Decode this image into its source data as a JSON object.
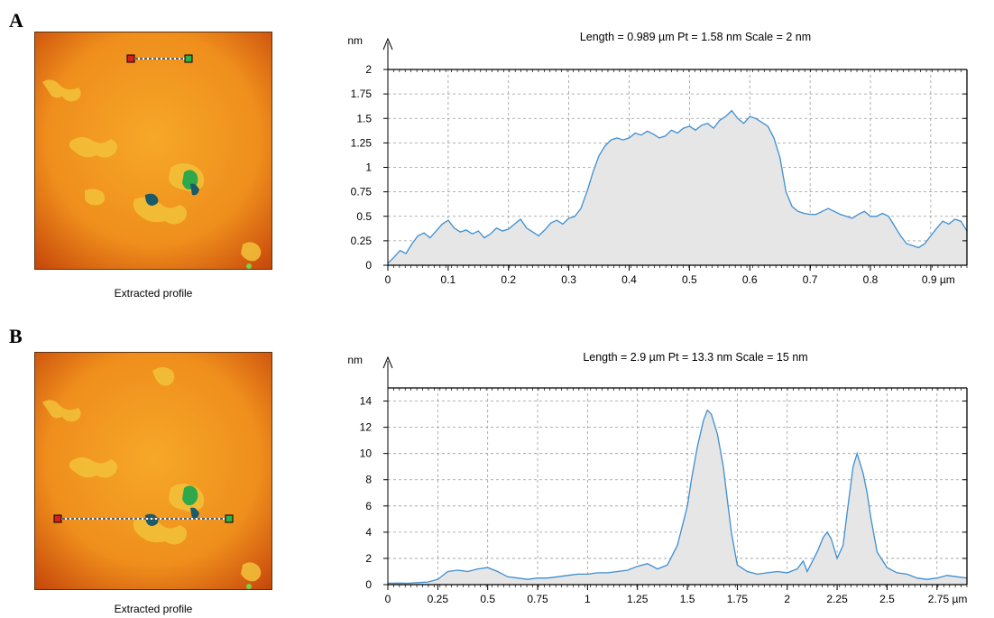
{
  "panels": [
    {
      "letter": "A",
      "caption": "Extracted profile",
      "header": "Length = 0.989 µm  Pt = 1.58 nm  Scale = 2 nm",
      "y_unit": "nm",
      "x_unit": "µm"
    },
    {
      "letter": "B",
      "caption": "Extracted profile",
      "header": "Length = 2.9 µm  Pt = 13.3 nm  Scale = 15 nm",
      "y_unit": "nm",
      "x_unit": "µm"
    }
  ],
  "colors": {
    "line": "#3d8fd1",
    "fill": "#e6e6e6",
    "grid": "#9a9a9a",
    "afm_base": "#f39a1f",
    "afm_edge": "#c4440a",
    "marker_start": "#d62020",
    "marker_end": "#2fb04a"
  },
  "chart_data": [
    {
      "type": "area",
      "title": "Length = 0.989 µm  Pt = 1.58 nm  Scale = 2 nm",
      "ylabel": "nm",
      "xlabel": "µm",
      "xlim": [
        0,
        0.96
      ],
      "ylim": [
        0,
        2
      ],
      "xticks": [
        0,
        0.1,
        0.2,
        0.3,
        0.4,
        0.5,
        0.6,
        0.7,
        0.8,
        0.9
      ],
      "xtick_labels": [
        "0",
        "0.1",
        "0.2",
        "0.3",
        "0.4",
        "0.5",
        "0.6",
        "0.7",
        "0.8",
        "0.9 µm"
      ],
      "yticks": [
        0,
        0.25,
        0.5,
        0.75,
        1,
        1.25,
        1.5,
        1.75,
        2
      ],
      "ytick_labels": [
        "0",
        "0.25",
        "0.5",
        "0.75",
        "1",
        "1.25",
        "1.5",
        "1.75",
        "2"
      ],
      "grid": true,
      "x": [
        0,
        0.01,
        0.02,
        0.03,
        0.04,
        0.05,
        0.06,
        0.07,
        0.08,
        0.09,
        0.1,
        0.11,
        0.12,
        0.13,
        0.14,
        0.15,
        0.16,
        0.17,
        0.18,
        0.19,
        0.2,
        0.21,
        0.22,
        0.23,
        0.24,
        0.25,
        0.26,
        0.27,
        0.28,
        0.29,
        0.3,
        0.31,
        0.32,
        0.33,
        0.34,
        0.35,
        0.36,
        0.37,
        0.38,
        0.39,
        0.4,
        0.41,
        0.42,
        0.43,
        0.44,
        0.45,
        0.46,
        0.47,
        0.48,
        0.49,
        0.5,
        0.51,
        0.52,
        0.53,
        0.54,
        0.55,
        0.56,
        0.57,
        0.58,
        0.59,
        0.6,
        0.61,
        0.62,
        0.63,
        0.64,
        0.65,
        0.66,
        0.67,
        0.68,
        0.69,
        0.7,
        0.71,
        0.72,
        0.73,
        0.74,
        0.75,
        0.76,
        0.77,
        0.78,
        0.79,
        0.8,
        0.81,
        0.82,
        0.83,
        0.84,
        0.85,
        0.86,
        0.87,
        0.88,
        0.89,
        0.9,
        0.91,
        0.92,
        0.93,
        0.94,
        0.95,
        0.96
      ],
      "y": [
        0.02,
        0.08,
        0.15,
        0.12,
        0.22,
        0.3,
        0.33,
        0.28,
        0.35,
        0.42,
        0.46,
        0.38,
        0.34,
        0.36,
        0.32,
        0.35,
        0.28,
        0.32,
        0.38,
        0.35,
        0.37,
        0.42,
        0.47,
        0.38,
        0.34,
        0.3,
        0.36,
        0.43,
        0.46,
        0.42,
        0.48,
        0.5,
        0.58,
        0.75,
        0.95,
        1.12,
        1.22,
        1.28,
        1.3,
        1.28,
        1.3,
        1.35,
        1.33,
        1.37,
        1.34,
        1.3,
        1.32,
        1.38,
        1.35,
        1.4,
        1.42,
        1.38,
        1.43,
        1.45,
        1.4,
        1.48,
        1.52,
        1.58,
        1.5,
        1.45,
        1.52,
        1.5,
        1.46,
        1.42,
        1.3,
        1.1,
        0.75,
        0.6,
        0.55,
        0.53,
        0.52,
        0.52,
        0.55,
        0.58,
        0.55,
        0.52,
        0.5,
        0.48,
        0.52,
        0.55,
        0.5,
        0.5,
        0.53,
        0.5,
        0.4,
        0.3,
        0.22,
        0.2,
        0.18,
        0.22,
        0.3,
        0.38,
        0.45,
        0.42,
        0.47,
        0.45,
        0.35
      ]
    },
    {
      "type": "area",
      "title": "Length = 2.9 µm  Pt = 13.3 nm  Scale = 15 nm",
      "ylabel": "nm",
      "xlabel": "µm",
      "xlim": [
        0,
        2.9
      ],
      "ylim": [
        0,
        15
      ],
      "xticks": [
        0,
        0.25,
        0.5,
        0.75,
        1,
        1.25,
        1.5,
        1.75,
        2,
        2.25,
        2.5,
        2.75
      ],
      "xtick_labels": [
        "0",
        "0.25",
        "0.5",
        "0.75",
        "1",
        "1.25",
        "1.5",
        "1.75",
        "2",
        "2.25",
        "2.5",
        "2.75 µm"
      ],
      "yticks": [
        0,
        2,
        4,
        6,
        8,
        10,
        12,
        14
      ],
      "ytick_labels": [
        "0",
        "2",
        "4",
        "6",
        "8",
        "10",
        "12",
        "14"
      ],
      "grid": true,
      "x": [
        0,
        0.05,
        0.1,
        0.15,
        0.2,
        0.25,
        0.3,
        0.35,
        0.4,
        0.45,
        0.5,
        0.55,
        0.6,
        0.65,
        0.7,
        0.75,
        0.8,
        0.85,
        0.9,
        0.95,
        1.0,
        1.05,
        1.1,
        1.15,
        1.2,
        1.25,
        1.3,
        1.35,
        1.4,
        1.45,
        1.5,
        1.52,
        1.55,
        1.58,
        1.6,
        1.62,
        1.65,
        1.68,
        1.7,
        1.72,
        1.75,
        1.8,
        1.85,
        1.9,
        1.95,
        2.0,
        2.05,
        2.08,
        2.1,
        2.15,
        2.18,
        2.2,
        2.22,
        2.25,
        2.28,
        2.3,
        2.33,
        2.35,
        2.38,
        2.4,
        2.42,
        2.45,
        2.5,
        2.55,
        2.6,
        2.65,
        2.7,
        2.75,
        2.8,
        2.85,
        2.9
      ],
      "y": [
        0.1,
        0.12,
        0.1,
        0.15,
        0.2,
        0.4,
        1.0,
        1.1,
        1.0,
        1.2,
        1.3,
        1.0,
        0.6,
        0.5,
        0.4,
        0.5,
        0.5,
        0.6,
        0.7,
        0.8,
        0.8,
        0.9,
        0.9,
        1.0,
        1.1,
        1.4,
        1.6,
        1.2,
        1.5,
        3.0,
        6.0,
        8.0,
        10.5,
        12.5,
        13.3,
        13.0,
        11.5,
        9.0,
        6.5,
        4.0,
        1.5,
        1.0,
        0.8,
        0.9,
        1.0,
        0.9,
        1.2,
        1.8,
        1.0,
        2.5,
        3.6,
        4.0,
        3.5,
        2.0,
        3.0,
        5.5,
        9.0,
        10.0,
        8.5,
        7.0,
        5.0,
        2.5,
        1.3,
        0.9,
        0.8,
        0.5,
        0.4,
        0.5,
        0.7,
        0.6,
        0.5
      ]
    }
  ]
}
